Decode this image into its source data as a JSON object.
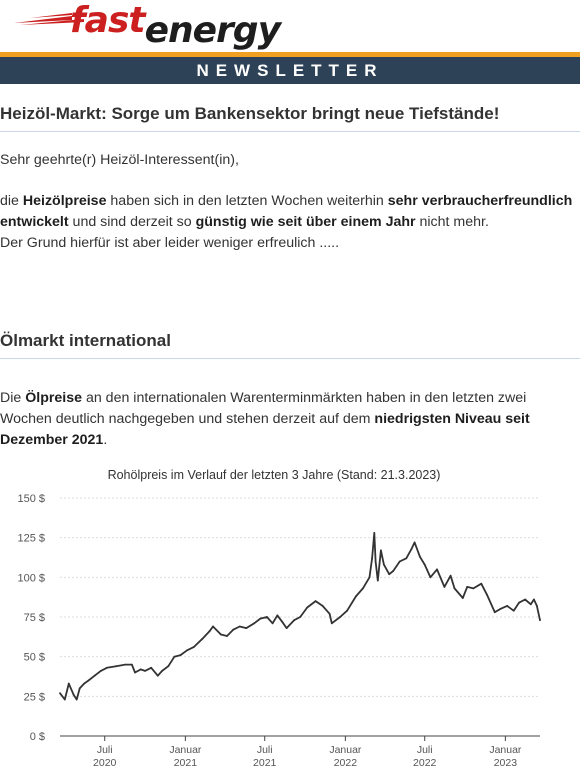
{
  "brand": {
    "logo_fast": "fast",
    "logo_energy": "energy",
    "colors": {
      "red": "#cc1f1f",
      "orange": "#f0a020",
      "navy": "#2e4257"
    }
  },
  "banner": {
    "label": "NEWSLETTER"
  },
  "article": {
    "headline": "Heizöl-Markt: Sorge um Bankensektor bringt neue Tiefstände!",
    "greeting": "Sehr geehrte(r) Heizöl-Interessent(in),",
    "intro": {
      "t1": "die ",
      "b1": "Heizölpreise",
      "t2": " haben sich in den letzten Wochen weiterhin ",
      "b2": "sehr verbraucherfreundlich entwickelt",
      "t3": " und sind derzeit so ",
      "b3": "günstig wie seit über einem Jahr",
      "t4": " nicht mehr.",
      "t5": "Der Grund hierfür ist aber leider weniger erfreulich ....."
    },
    "section_title": "Ölmarkt international",
    "section_text": {
      "t1": "Die ",
      "b1": "Ölpreise",
      "t2": " an den internationalen Warenterminmärkten haben in den letzten zwei Wochen deutlich nachgegeben und stehen derzeit auf dem ",
      "b2": "niedrigsten Niveau seit Dezember 2021",
      "t3": "."
    }
  },
  "chart_data": {
    "type": "line",
    "title": "Rohölpreis im Verlauf der letzten 3 Jahre (Stand: 21.3.2023)",
    "xlabel": "",
    "ylabel": "",
    "ylim": [
      0,
      150
    ],
    "xlim": [
      "2020-03-21",
      "2023-03-21"
    ],
    "y_ticks": [
      "0 $",
      "25 $",
      "50 $",
      "75 $",
      "100 $",
      "125 $",
      "150 $"
    ],
    "x_ticks": [
      {
        "date": "2020-07-01",
        "line1": "Juli",
        "line2": "2020"
      },
      {
        "date": "2021-01-01",
        "line1": "Januar",
        "line2": "2021"
      },
      {
        "date": "2021-07-01",
        "line1": "Juli",
        "line2": "2021"
      },
      {
        "date": "2022-01-01",
        "line1": "Januar",
        "line2": "2022"
      },
      {
        "date": "2022-07-01",
        "line1": "Juli",
        "line2": "2022"
      },
      {
        "date": "2023-01-01",
        "line1": "Januar",
        "line2": "2023"
      }
    ],
    "grid": true,
    "line_color": "#333333",
    "series": [
      {
        "x": [
          "2020-03-21",
          "2020-04-01",
          "2020-04-10",
          "2020-04-21",
          "2020-04-28",
          "2020-05-05",
          "2020-05-15",
          "2020-05-25",
          "2020-06-08",
          "2020-06-22",
          "2020-07-06",
          "2020-07-27",
          "2020-08-17",
          "2020-09-01",
          "2020-09-08",
          "2020-09-21",
          "2020-10-01",
          "2020-10-15",
          "2020-10-30",
          "2020-11-09",
          "2020-11-23",
          "2020-12-07",
          "2020-12-21",
          "2021-01-05",
          "2021-01-20",
          "2021-02-08",
          "2021-02-25",
          "2021-03-05",
          "2021-03-23",
          "2021-04-06",
          "2021-04-20",
          "2021-05-05",
          "2021-05-20",
          "2021-06-07",
          "2021-06-21",
          "2021-07-06",
          "2021-07-19",
          "2021-07-30",
          "2021-08-10",
          "2021-08-20",
          "2021-09-06",
          "2021-09-20",
          "2021-10-06",
          "2021-10-25",
          "2021-11-10",
          "2021-11-26",
          "2021-12-01",
          "2021-12-20",
          "2022-01-05",
          "2022-01-25",
          "2022-02-10",
          "2022-02-25",
          "2022-03-03",
          "2022-03-08",
          "2022-03-11",
          "2022-03-16",
          "2022-03-23",
          "2022-03-30",
          "2022-04-11",
          "2022-04-20",
          "2022-05-05",
          "2022-05-20",
          "2022-06-01",
          "2022-06-08",
          "2022-06-20",
          "2022-07-01",
          "2022-07-14",
          "2022-07-29",
          "2022-08-15",
          "2022-08-29",
          "2022-09-07",
          "2022-09-26",
          "2022-10-06",
          "2022-10-20",
          "2022-11-07",
          "2022-11-20",
          "2022-12-08",
          "2022-12-20",
          "2023-01-05",
          "2023-01-20",
          "2023-02-01",
          "2023-02-15",
          "2023-02-28",
          "2023-03-07",
          "2023-03-14",
          "2023-03-21"
        ],
        "y": [
          27,
          23,
          33,
          26,
          23,
          30,
          33,
          35,
          38,
          41,
          43,
          44,
          45,
          45,
          40,
          42,
          41,
          43,
          38,
          41,
          44,
          50,
          51,
          54,
          56,
          61,
          66,
          69,
          64,
          63,
          67,
          69,
          68,
          71,
          74,
          75,
          71,
          76,
          72,
          68,
          73,
          75,
          81,
          85,
          82,
          77,
          71,
          75,
          79,
          88,
          93,
          100,
          112,
          128,
          110,
          98,
          117,
          108,
          102,
          104,
          110,
          112,
          118,
          122,
          113,
          108,
          100,
          105,
          94,
          101,
          93,
          87,
          94,
          93,
          96,
          89,
          78,
          80,
          82,
          79,
          84,
          86,
          83,
          86,
          82,
          73
        ]
      }
    ]
  }
}
